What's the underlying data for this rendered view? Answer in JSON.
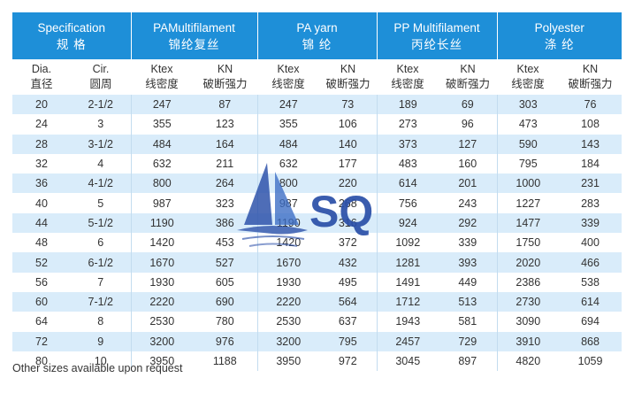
{
  "groups": [
    {
      "en": "Specification",
      "cn": "规 格"
    },
    {
      "en": "PAMultifilament",
      "cn": "锦纶复丝"
    },
    {
      "en": "PA yarn",
      "cn": "锦 纶"
    },
    {
      "en": "PP Multifilament",
      "cn": "丙纶长丝"
    },
    {
      "en": "Polyester",
      "cn": "涤 纶"
    }
  ],
  "subheaders": [
    {
      "en": "Dia.",
      "cn": "直径"
    },
    {
      "en": "Cir.",
      "cn": "圆周"
    },
    {
      "en": "Ktex",
      "cn": "线密度"
    },
    {
      "en": "KN",
      "cn": "破断强力"
    },
    {
      "en": "Ktex",
      "cn": "线密度"
    },
    {
      "en": "KN",
      "cn": "破断强力"
    },
    {
      "en": "Ktex",
      "cn": "线密度"
    },
    {
      "en": "KN",
      "cn": "破断强力"
    },
    {
      "en": "Ktex",
      "cn": "线密度"
    },
    {
      "en": "KN",
      "cn": "破断强力"
    }
  ],
  "rows": [
    [
      "20",
      "2-1/2",
      "247",
      "87",
      "247",
      "73",
      "189",
      "69",
      "303",
      "76"
    ],
    [
      "24",
      "3",
      "355",
      "123",
      "355",
      "106",
      "273",
      "96",
      "473",
      "108"
    ],
    [
      "28",
      "3-1/2",
      "484",
      "164",
      "484",
      "140",
      "373",
      "127",
      "590",
      "143"
    ],
    [
      "32",
      "4",
      "632",
      "211",
      "632",
      "177",
      "483",
      "160",
      "795",
      "184"
    ],
    [
      "36",
      "4-1/2",
      "800",
      "264",
      "800",
      "220",
      "614",
      "201",
      "1000",
      "231"
    ],
    [
      "40",
      "5",
      "987",
      "323",
      "987",
      "268",
      "756",
      "243",
      "1227",
      "283"
    ],
    [
      "44",
      "5-1/2",
      "1190",
      "386",
      "1190",
      "316",
      "924",
      "292",
      "1477",
      "339"
    ],
    [
      "48",
      "6",
      "1420",
      "453",
      "1420",
      "372",
      "1092",
      "339",
      "1750",
      "400"
    ],
    [
      "52",
      "6-1/2",
      "1670",
      "527",
      "1670",
      "432",
      "1281",
      "393",
      "2020",
      "466"
    ],
    [
      "56",
      "7",
      "1930",
      "605",
      "1930",
      "495",
      "1491",
      "449",
      "2386",
      "538"
    ],
    [
      "60",
      "7-1/2",
      "2220",
      "690",
      "2220",
      "564",
      "1712",
      "513",
      "2730",
      "614"
    ],
    [
      "64",
      "8",
      "2530",
      "780",
      "2530",
      "637",
      "1943",
      "581",
      "3090",
      "694"
    ],
    [
      "72",
      "9",
      "3200",
      "976",
      "3200",
      "795",
      "2457",
      "729",
      "3910",
      "868"
    ],
    [
      "80",
      "10",
      "3950",
      "1188",
      "3950",
      "972",
      "3045",
      "897",
      "4820",
      "1059"
    ]
  ],
  "footnote": "Other sizes available upon request",
  "watermark": {
    "text": "SQ",
    "icon": "sailboat-logo-icon",
    "color": "#2a4fa8"
  }
}
